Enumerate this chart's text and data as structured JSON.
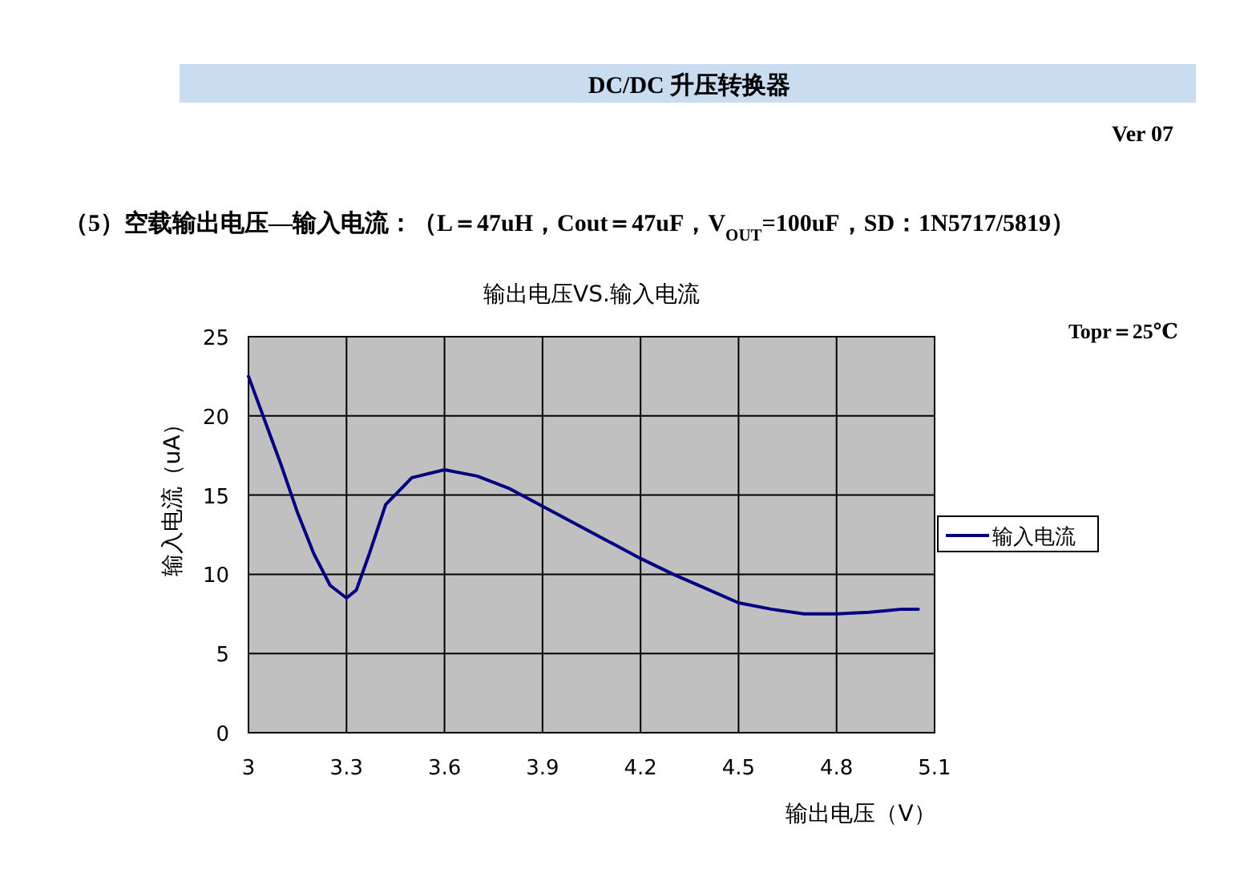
{
  "chart_data": {
    "type": "line",
    "title": "输出电压VS.输入电流",
    "subtitle": "（5）空载输出电压—输入电流：（L＝47uH，Cout＝47uF，V$_{OUT}$=100uF，SD：1N5717/5819）",
    "xlabel": "输出电压（V）",
    "ylabel": "输入电流（uA）",
    "annotations": [
      "DC/DC 升压转换器",
      "Ver 07",
      "Topr＝25℃"
    ],
    "xlim": [
      3,
      5.1
    ],
    "ylim": [
      0,
      25
    ],
    "xticks": [
      3,
      3.3,
      3.6,
      3.9,
      4.2,
      4.5,
      4.8,
      5.1
    ],
    "yticks": [
      0,
      5,
      10,
      15,
      20,
      25
    ],
    "grid": true,
    "legend": "right",
    "series": [
      {
        "name": "输入电流",
        "color": "#000080",
        "x": [
          3.0,
          3.05,
          3.1,
          3.15,
          3.2,
          3.25,
          3.3,
          3.33,
          3.37,
          3.42,
          3.5,
          3.6,
          3.7,
          3.8,
          3.9,
          4.0,
          4.1,
          4.2,
          4.3,
          4.4,
          4.5,
          4.6,
          4.7,
          4.8,
          4.9,
          5.0,
          5.05
        ],
        "values": [
          22.5,
          19.7,
          16.9,
          13.9,
          11.3,
          9.3,
          8.5,
          9.0,
          11.3,
          14.4,
          16.1,
          16.6,
          16.2,
          15.4,
          14.3,
          13.2,
          12.1,
          11.0,
          10.0,
          9.1,
          8.2,
          7.8,
          7.5,
          7.5,
          7.6,
          7.8,
          7.8
        ]
      }
    ]
  }
}
